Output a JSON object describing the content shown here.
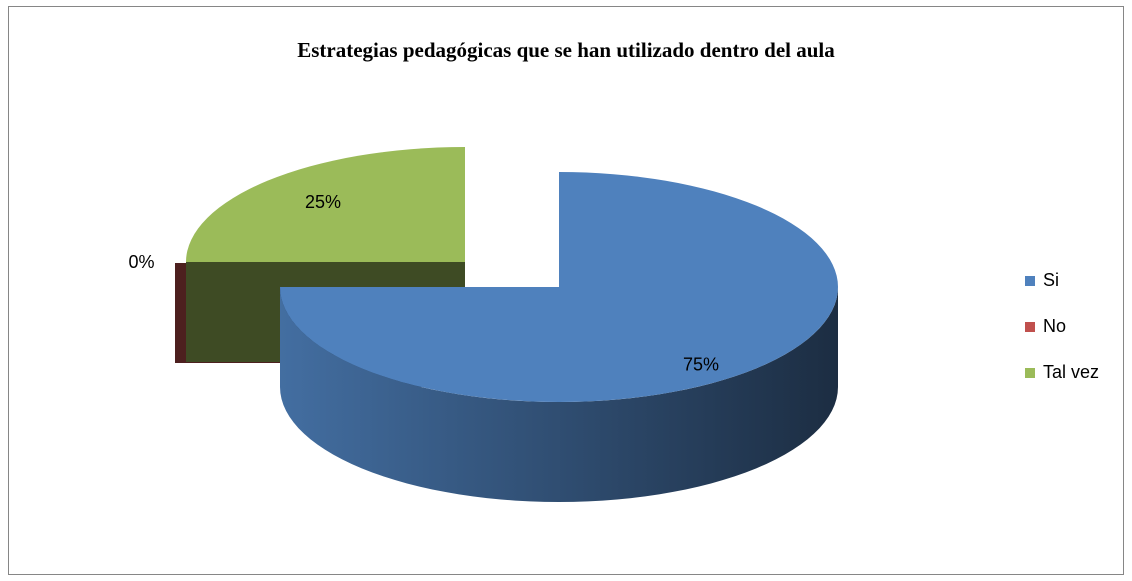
{
  "chart_data": {
    "type": "pie",
    "title": "Estrategias pedagógicas que se han utilizado dentro del aula",
    "categories": [
      "Si",
      "No",
      "Tal vez"
    ],
    "values": [
      75,
      0,
      25
    ],
    "value_labels": [
      "75%",
      "0%",
      "25%"
    ],
    "colors": [
      "#4f81bd",
      "#c0504d",
      "#9bbb59"
    ],
    "legend": "right"
  }
}
